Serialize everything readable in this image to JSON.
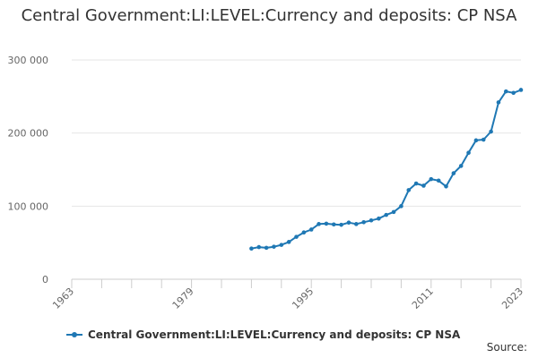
{
  "chart_data": {
    "type": "line",
    "title": "Central Government:LI:LEVEL:Currency and deposits: CP NSA",
    "xlabel": "",
    "ylabel": "",
    "xlim": [
      1963,
      2023
    ],
    "ylim": [
      0,
      300000
    ],
    "x_ticks": [
      1963,
      1979,
      1995,
      2011,
      2023
    ],
    "x_tick_labels": [
      "1963",
      "1979",
      "1995",
      "2011",
      "2023"
    ],
    "y_ticks": [
      0,
      100000,
      200000,
      300000
    ],
    "y_tick_labels": [
      "0",
      "100 000",
      "200 000",
      "300 000"
    ],
    "grid": true,
    "legend_position": "bottom-left",
    "series": [
      {
        "name": "Central Government:LI:LEVEL:Currency and deposits: CP NSA",
        "color": "#1f78b4",
        "x": [
          1987,
          1988,
          1989,
          1990,
          1991,
          1992,
          1993,
          1994,
          1995,
          1996,
          1997,
          1998,
          1999,
          2000,
          2001,
          2002,
          2003,
          2004,
          2005,
          2006,
          2007,
          2008,
          2009,
          2010,
          2011,
          2012,
          2013,
          2014,
          2015,
          2016,
          2017,
          2018,
          2019,
          2020,
          2021,
          2022,
          2023
        ],
        "values": [
          42000,
          44000,
          43000,
          44500,
          47000,
          51000,
          58000,
          64000,
          68000,
          75500,
          76000,
          75000,
          74500,
          77500,
          75500,
          78000,
          80500,
          83000,
          88000,
          92000,
          100000,
          122000,
          131000,
          128000,
          137000,
          135000,
          127000,
          145000,
          155000,
          173000,
          190000,
          191000,
          202000,
          242000,
          257000,
          255000,
          259000
        ]
      }
    ]
  },
  "source_label": "Source:"
}
